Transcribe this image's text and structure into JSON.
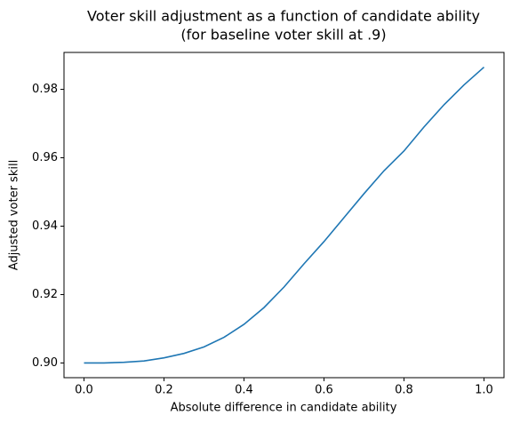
{
  "chart_data": {
    "type": "line",
    "title": "Voter skill adjustment as a function of candidate ability",
    "subtitle": "(for baseline voter skill at .9)",
    "x_label": "Absolute difference in candidate ability",
    "y_label": "Adjusted voter skill",
    "x": [
      0,
      0.05,
      0.1,
      0.15,
      0.2,
      0.25,
      0.3,
      0.35,
      0.4,
      0.45,
      0.5,
      0.55,
      0.6,
      0.65,
      0.7,
      0.75,
      0.8,
      0.85,
      0.9,
      0.95,
      1.0
    ],
    "series": [
      {
        "name": "Adjusted voter skill",
        "color": "#1f77b4",
        "values": [
          0.9,
          0.9,
          0.9002,
          0.9006,
          0.9015,
          0.9028,
          0.9047,
          0.9075,
          0.9113,
          0.9162,
          0.9222,
          0.929,
          0.9355,
          0.9425,
          0.9495,
          0.9562,
          0.962,
          0.969,
          0.9755,
          0.9813,
          0.9865
        ]
      }
    ],
    "xlim": [
      -0.05,
      1.05
    ],
    "ylim": [
      0.8957,
      0.9908
    ],
    "xticks": [
      {
        "value": 0,
        "label": "0.0"
      },
      0.2,
      0.4,
      0.6,
      0.8,
      {
        "value": 1,
        "label": "1.0"
      }
    ],
    "yticks": [
      {
        "value": 0.9,
        "label": "0.90"
      },
      0.92,
      0.94,
      0.96,
      0.98
    ],
    "grid": false
  }
}
